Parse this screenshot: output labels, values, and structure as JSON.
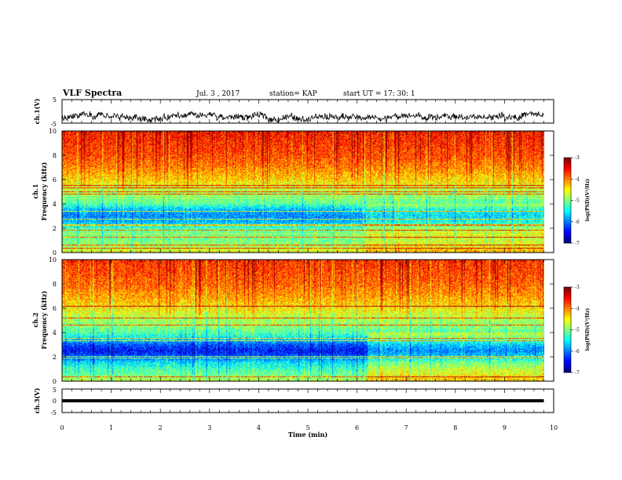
{
  "header": {
    "title": "VLF Spectra",
    "date": "Jul. 3 , 2017",
    "station": "station= KAP",
    "start": "start UT = 17: 30: 1"
  },
  "chart_data": [
    {
      "type": "line",
      "name": "ch1-waveform",
      "ylabel": "ch.1(V)",
      "ylim": [
        -5,
        5
      ],
      "yticks": [
        "5",
        "-5"
      ],
      "xlim": [
        0,
        10
      ],
      "baseline": -2.5,
      "amplitude": 1.2,
      "x_end": 9.8
    },
    {
      "type": "heatmap",
      "name": "ch1-spectrogram",
      "ylabel": "ch.1\nFrequency (kHz)",
      "ylim": [
        0,
        10
      ],
      "yticks": [
        "0",
        "2",
        "4",
        "6",
        "8",
        "10"
      ],
      "xlim": [
        0,
        10
      ],
      "x_end": 9.8,
      "colorbar": {
        "label": "log(PSD)(V²/Hz)",
        "range": [
          -7,
          -3
        ],
        "ticks": [
          "-3",
          "-4",
          "-5",
          "-6",
          "-7"
        ]
      },
      "profile": [
        {
          "f": 0.0,
          "v": -4.6
        },
        {
          "f": 0.5,
          "v": -4.9
        },
        {
          "f": 1.0,
          "v": -5.1
        },
        {
          "f": 1.5,
          "v": -5.0
        },
        {
          "f": 2.0,
          "v": -5.3
        },
        {
          "f": 2.5,
          "v": -5.8
        },
        {
          "f": 3.0,
          "v": -6.0
        },
        {
          "f": 3.5,
          "v": -5.8
        },
        {
          "f": 4.0,
          "v": -5.2
        },
        {
          "f": 4.5,
          "v": -5.0
        },
        {
          "f": 5.0,
          "v": -4.9
        },
        {
          "f": 5.5,
          "v": -4.6
        },
        {
          "f": 6.0,
          "v": -4.4
        },
        {
          "f": 7.0,
          "v": -4.1
        },
        {
          "f": 8.0,
          "v": -3.9
        },
        {
          "f": 9.0,
          "v": -3.8
        },
        {
          "f": 10.0,
          "v": -3.7
        }
      ],
      "lines_khz": [
        0.3,
        0.6,
        1.25,
        1.85,
        2.2,
        2.3,
        2.7,
        3.4,
        4.8,
        5.0,
        5.3,
        5.5
      ],
      "shift_at_min": 6.1,
      "after_shift_delta": 0.35
    },
    {
      "type": "heatmap",
      "name": "ch2-spectrogram",
      "ylabel": "ch.2\nFrequency (kHz)",
      "ylim": [
        0,
        10
      ],
      "yticks": [
        "0",
        "2",
        "4",
        "6",
        "8",
        "10"
      ],
      "xlim": [
        0,
        10
      ],
      "x_end": 9.8,
      "colorbar": {
        "label": "log(PSD)(V²/Hz)",
        "range": [
          -7,
          -3
        ],
        "ticks": [
          "-3",
          "-4",
          "-5",
          "-6",
          "-7"
        ]
      },
      "profile": [
        {
          "f": 0.0,
          "v": -4.8
        },
        {
          "f": 0.5,
          "v": -5.1
        },
        {
          "f": 1.0,
          "v": -5.3
        },
        {
          "f": 1.5,
          "v": -5.6
        },
        {
          "f": 2.0,
          "v": -6.2
        },
        {
          "f": 2.5,
          "v": -6.5
        },
        {
          "f": 3.0,
          "v": -6.2
        },
        {
          "f": 3.5,
          "v": -5.6
        },
        {
          "f": 4.0,
          "v": -5.2
        },
        {
          "f": 4.5,
          "v": -5.0
        },
        {
          "f": 5.0,
          "v": -4.9
        },
        {
          "f": 5.5,
          "v": -4.7
        },
        {
          "f": 6.0,
          "v": -4.5
        },
        {
          "f": 7.0,
          "v": -4.2
        },
        {
          "f": 8.0,
          "v": -4.0
        },
        {
          "f": 9.0,
          "v": -3.9
        },
        {
          "f": 10.0,
          "v": -3.8
        }
      ],
      "lines_khz": [
        0.3,
        1.9,
        2.0,
        3.3,
        3.5,
        4.6,
        5.2,
        6.2
      ],
      "shift_at_min": 6.2,
      "after_shift_delta": 0.5
    },
    {
      "type": "line",
      "name": "ch3-waveform",
      "ylabel": "ch.3(V)",
      "ylim": [
        -5,
        5
      ],
      "yticks": [
        "5",
        "0",
        "-5"
      ],
      "xlim": [
        0,
        10
      ],
      "level": 0,
      "x_end": 9.8
    }
  ],
  "xaxis": {
    "label": "Time (min)",
    "ticks": [
      "0",
      "1",
      "2",
      "3",
      "4",
      "5",
      "6",
      "7",
      "8",
      "9",
      "10"
    ]
  }
}
